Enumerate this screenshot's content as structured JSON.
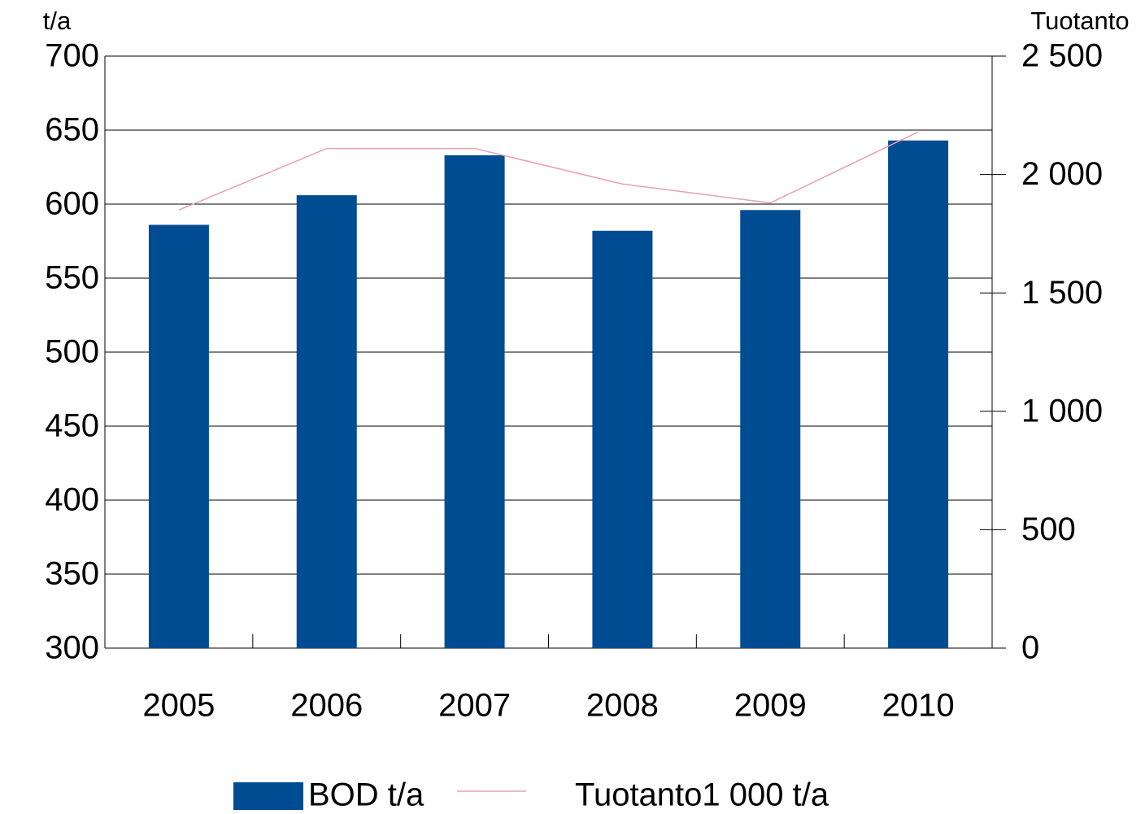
{
  "chart_data": {
    "type": "bar",
    "y_label": "t/a",
    "y2_label": "Tuotanto",
    "categories": [
      "2005",
      "2006",
      "2007",
      "2008",
      "2009",
      "2010"
    ],
    "series": [
      {
        "name": "BOD t/a",
        "type": "bar",
        "color": "#004c93",
        "values": [
          586,
          606,
          633,
          582,
          596,
          643
        ]
      },
      {
        "name": "Tuotanto1 000 t/a",
        "type": "line",
        "axis": "y2",
        "color": "#e8a0b4",
        "values": [
          1850,
          2110,
          2110,
          1960,
          1880,
          2180
        ]
      }
    ],
    "ylim": [
      300,
      700
    ],
    "yticks": [
      300,
      350,
      400,
      450,
      500,
      550,
      600,
      650,
      700
    ],
    "y2lim": [
      0,
      2500
    ],
    "y2ticks": [
      0,
      500,
      {
        "value": 1000,
        "label": "1 000"
      },
      {
        "value": 1500,
        "label": "1 500"
      },
      {
        "value": 2000,
        "label": "2 000"
      },
      {
        "value": 2500,
        "label": "2 500"
      }
    ],
    "grid": true,
    "legend": "bottom"
  }
}
